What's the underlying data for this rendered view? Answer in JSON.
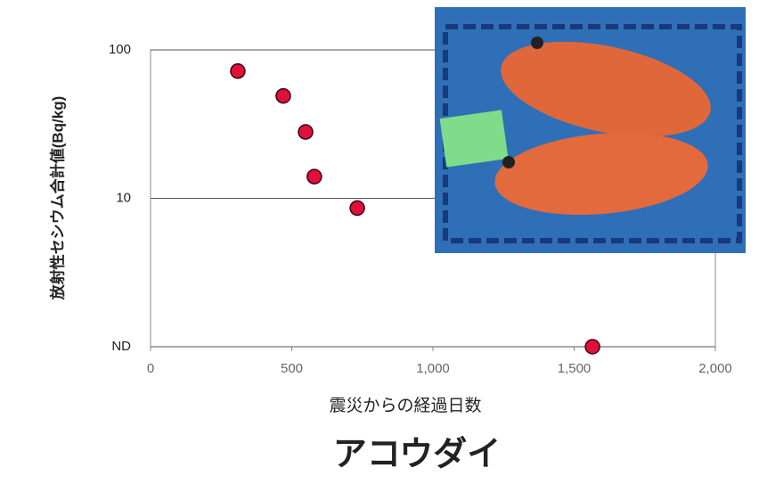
{
  "chart_data": {
    "type": "scatter",
    "title": "アコウダイ",
    "xlabel": "震災からの経過日数",
    "ylabel": "放射性セシウム合計値(Bq/kg)",
    "x": [
      309,
      470,
      549,
      580,
      732,
      1565
    ],
    "values": [
      72,
      49,
      28,
      14,
      8.6,
      1
    ],
    "color": "#e0103a",
    "xlim": [
      0,
      2000
    ],
    "xticks": [
      0,
      500,
      {
        "value": 1000,
        "label": "1,000"
      },
      {
        "value": 1500,
        "label": "1,500"
      },
      {
        "value": 2000,
        "label": "2,000"
      }
    ],
    "ylim": [
      1,
      100
    ],
    "yscale": "log",
    "yticks": [
      {
        "value": 1,
        "label": "ND"
      },
      10,
      100
    ],
    "grid": true
  }
}
